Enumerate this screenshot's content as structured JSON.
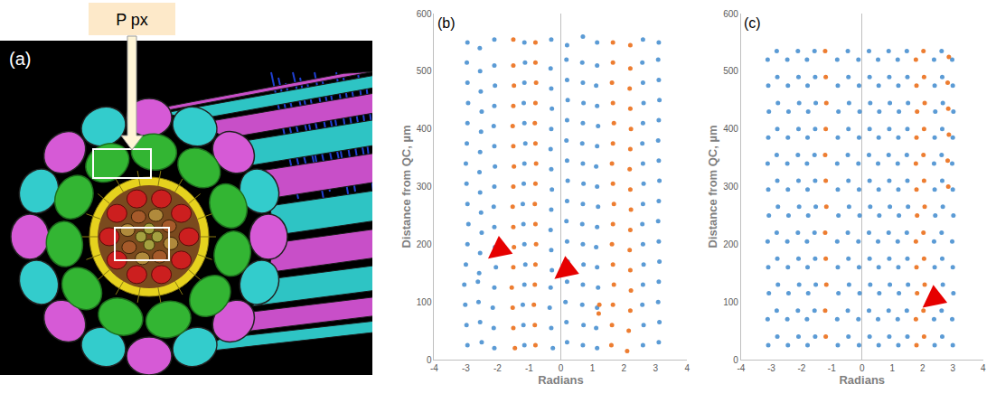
{
  "panel_a": {
    "label": "(a)",
    "callout": "P px"
  },
  "chart_data": [
    {
      "type": "scatter",
      "title": "(b)",
      "xlabel": "Radians",
      "ylabel": "Distance from QC, µm",
      "xlim": [
        -4,
        4
      ],
      "xticks": [
        -4,
        -3,
        -2,
        -1,
        0,
        1,
        2,
        3,
        4
      ],
      "ylim": [
        0,
        600
      ],
      "yticks": [
        0,
        100,
        200,
        300,
        400,
        500,
        600
      ],
      "grid": false,
      "marker": "circle",
      "series": [
        {
          "color": "#5b9bd5",
          "x": [
            -2.95,
            -2.98,
            -3.02,
            -3.05,
            -3.0,
            -2.95,
            -2.92,
            -2.95,
            -2.98,
            -3.0,
            -2.97,
            -2.95,
            -2.93,
            -2.95,
            -2.97,
            -2.95,
            -2.5,
            -2.55,
            -2.6,
            -2.62,
            -2.58,
            -2.55,
            -2.5,
            -2.52,
            -2.55,
            -2.57,
            -2.55,
            -2.52,
            -2.5,
            -2.53,
            -2.55,
            -2.56,
            -2.1,
            -2.12,
            -2.15,
            -2.1,
            -2.05,
            -2.08,
            -2.1,
            -2.12,
            -2.1,
            -2.08,
            -2.1,
            -2.12,
            -2.1,
            -2.08,
            -2.1,
            -2.1,
            -1.15,
            -1.18,
            -1.2,
            -1.15,
            -1.12,
            -1.15,
            -1.18,
            -1.2,
            -1.17,
            -1.15,
            -1.12,
            -1.15,
            -1.17,
            -1.15,
            -1.13,
            -1.15,
            -0.25,
            -0.3,
            -0.35,
            -0.32,
            -0.28,
            -0.3,
            -0.32,
            -0.3,
            -0.28,
            -0.3,
            -0.32,
            -0.3,
            -0.28,
            -0.3,
            -0.32,
            -0.3,
            0.2,
            0.18,
            0.15,
            0.2,
            0.22,
            0.2,
            0.18,
            0.2,
            0.22,
            0.2,
            0.18,
            0.2,
            0.22,
            0.2,
            0.18,
            0.2,
            0.7,
            0.72,
            0.68,
            0.7,
            0.72,
            0.7,
            0.68,
            0.7,
            0.72,
            0.7,
            0.68,
            0.7,
            0.72,
            0.7,
            0.68,
            0.7,
            1.15,
            1.12,
            1.15,
            1.18,
            1.15,
            1.12,
            1.15,
            1.18,
            1.15,
            1.12,
            1.15,
            1.18,
            1.15,
            1.12,
            1.15,
            1.15,
            2.6,
            2.62,
            2.58,
            2.6,
            2.62,
            2.6,
            2.58,
            2.6,
            2.62,
            2.6,
            2.58,
            2.6,
            2.62,
            2.6,
            2.58,
            2.6,
            3.1,
            3.12,
            3.08,
            3.1,
            3.12,
            3.1,
            3.08,
            3.1,
            3.12,
            3.1,
            3.08,
            3.1,
            3.12,
            3.1,
            3.08,
            3.1
          ],
          "y": [
            25,
            60,
            95,
            130,
            165,
            200,
            235,
            270,
            305,
            340,
            375,
            410,
            445,
            480,
            515,
            550,
            30,
            65,
            100,
            135,
            150,
            185,
            220,
            255,
            290,
            325,
            360,
            395,
            430,
            465,
            500,
            540,
            20,
            55,
            90,
            125,
            160,
            195,
            230,
            265,
            300,
            335,
            370,
            405,
            440,
            475,
            510,
            555,
            25,
            60,
            95,
            130,
            165,
            200,
            235,
            270,
            305,
            340,
            375,
            410,
            445,
            480,
            515,
            550,
            20,
            55,
            90,
            125,
            155,
            190,
            225,
            260,
            295,
            330,
            365,
            400,
            435,
            470,
            505,
            555,
            30,
            65,
            100,
            135,
            170,
            205,
            240,
            275,
            310,
            345,
            380,
            415,
            450,
            485,
            520,
            545,
            25,
            60,
            95,
            130,
            165,
            200,
            235,
            270,
            305,
            340,
            375,
            410,
            445,
            480,
            515,
            560,
            20,
            55,
            90,
            125,
            160,
            195,
            230,
            265,
            300,
            335,
            370,
            405,
            440,
            475,
            510,
            550,
            25,
            60,
            95,
            130,
            165,
            200,
            235,
            270,
            305,
            340,
            375,
            410,
            445,
            480,
            515,
            555,
            30,
            65,
            100,
            135,
            170,
            205,
            240,
            275,
            310,
            345,
            380,
            415,
            450,
            485,
            520,
            550
          ]
        },
        {
          "color": "#ed7d31",
          "x": [
            -1.45,
            -1.5,
            -1.52,
            -1.55,
            -1.5,
            -1.48,
            -1.5,
            -1.52,
            -1.5,
            -1.48,
            -1.5,
            -1.52,
            -1.5,
            -1.48,
            -1.5,
            -1.5,
            -0.8,
            -0.82,
            -0.85,
            -0.82,
            -0.8,
            -0.78,
            -0.8,
            -0.82,
            -0.8,
            -0.78,
            -0.8,
            -0.82,
            -0.8,
            -0.78,
            -0.8,
            -0.8,
            1.6,
            1.62,
            1.65,
            1.68,
            1.65,
            1.62,
            1.65,
            1.68,
            1.65,
            1.62,
            1.65,
            1.68,
            1.65,
            1.62,
            1.65,
            1.65,
            2.1,
            2.15,
            2.2,
            2.22,
            2.2,
            2.18,
            2.2,
            2.22,
            2.2,
            2.18,
            2.2,
            2.22,
            2.2,
            2.18,
            2.2,
            2.2,
            1.2,
            1.22
          ],
          "y": [
            20,
            55,
            90,
            125,
            160,
            195,
            230,
            265,
            300,
            335,
            370,
            405,
            440,
            475,
            510,
            555,
            25,
            60,
            95,
            130,
            165,
            200,
            235,
            270,
            305,
            340,
            375,
            410,
            445,
            480,
            515,
            550,
            25,
            60,
            95,
            130,
            165,
            200,
            235,
            270,
            305,
            340,
            375,
            410,
            445,
            480,
            515,
            550,
            15,
            50,
            85,
            120,
            155,
            190,
            225,
            260,
            295,
            330,
            365,
            400,
            435,
            470,
            505,
            545,
            80,
            95
          ]
        }
      ],
      "arrows": [
        {
          "x": -2.3,
          "y": 175
        },
        {
          "x": -0.2,
          "y": 140
        }
      ]
    },
    {
      "type": "scatter",
      "title": "(c)",
      "xlabel": "Radians",
      "ylabel": "Distance from QC, µm",
      "xlim": [
        -4,
        4
      ],
      "xticks": [
        -4,
        -3,
        -2,
        -1,
        0,
        1,
        2,
        3,
        4
      ],
      "ylim": [
        0,
        600
      ],
      "yticks": [
        0,
        100,
        200,
        300,
        400,
        500,
        600
      ],
      "grid": false,
      "marker": "circle",
      "series": [
        {
          "color": "#5b9bd5",
          "x": [
            -3.1,
            -3.12,
            -3.08,
            -3.1,
            -3.12,
            -3.08,
            -3.1,
            -3.12,
            -3.1,
            -3.08,
            -3.1,
            -3.12,
            -2.8,
            -2.82,
            -2.78,
            -2.8,
            -2.82,
            -2.78,
            -2.8,
            -2.82,
            -2.8,
            -2.78,
            -2.8,
            -2.82,
            -2.45,
            -2.47,
            -2.43,
            -2.45,
            -2.47,
            -2.43,
            -2.45,
            -2.47,
            -2.45,
            -2.43,
            -2.45,
            -2.47,
            -2.1,
            -2.12,
            -2.08,
            -2.1,
            -2.12,
            -2.08,
            -2.1,
            -2.12,
            -2.1,
            -2.08,
            -2.1,
            -2.12,
            -1.8,
            -1.82,
            -1.78,
            -1.8,
            -1.82,
            -1.78,
            -1.8,
            -1.82,
            -1.8,
            -1.78,
            -1.8,
            -1.82,
            -1.55,
            -1.57,
            -1.53,
            -1.55,
            -1.57,
            -1.53,
            -1.55,
            -1.57,
            -1.55,
            -1.53,
            -1.55,
            -1.57,
            -0.8,
            -0.82,
            -0.78,
            -0.8,
            -0.82,
            -0.78,
            -0.8,
            -0.82,
            -0.8,
            -0.78,
            -0.8,
            -0.82,
            -0.45,
            -0.47,
            -0.43,
            -0.45,
            -0.47,
            -0.43,
            -0.45,
            -0.47,
            -0.45,
            -0.43,
            -0.45,
            -0.47,
            -0.1,
            -0.12,
            -0.08,
            -0.1,
            -0.12,
            -0.08,
            -0.1,
            -0.12,
            -0.1,
            -0.08,
            -0.1,
            -0.12,
            0.25,
            0.23,
            0.27,
            0.25,
            0.23,
            0.27,
            0.25,
            0.23,
            0.25,
            0.27,
            0.25,
            0.23,
            0.55,
            0.53,
            0.57,
            0.55,
            0.53,
            0.57,
            0.55,
            0.53,
            0.55,
            0.57,
            0.55,
            0.53,
            0.9,
            0.88,
            0.92,
            0.9,
            0.88,
            0.92,
            0.9,
            0.88,
            0.9,
            0.92,
            0.9,
            0.88,
            1.2,
            1.18,
            1.22,
            1.2,
            1.18,
            1.22,
            1.2,
            1.18,
            1.2,
            1.22,
            1.2,
            1.18,
            1.5,
            1.48,
            1.52,
            1.5,
            1.48,
            1.52,
            1.5,
            1.48,
            1.5,
            1.52,
            1.5,
            1.48,
            2.4,
            2.38,
            2.42,
            2.4,
            2.38,
            2.42,
            2.4,
            2.38,
            2.4,
            2.42,
            2.4,
            2.38,
            2.65,
            2.63,
            2.67,
            2.65,
            2.63,
            2.67,
            2.65,
            2.63,
            2.65,
            2.67,
            2.65,
            2.63,
            3.0,
            2.98,
            3.02,
            3.0,
            2.98,
            3.02,
            3.0,
            2.98,
            3.0,
            3.02,
            3.0,
            2.98
          ],
          "y": [
            25,
            70,
            115,
            160,
            205,
            250,
            295,
            340,
            385,
            430,
            475,
            520,
            40,
            85,
            130,
            175,
            220,
            265,
            310,
            355,
            400,
            445,
            490,
            535,
            25,
            70,
            115,
            160,
            205,
            250,
            295,
            340,
            385,
            430,
            475,
            520,
            40,
            85,
            130,
            175,
            220,
            265,
            310,
            355,
            400,
            445,
            490,
            535,
            25,
            70,
            115,
            160,
            205,
            250,
            295,
            340,
            385,
            430,
            475,
            520,
            40,
            85,
            130,
            175,
            220,
            265,
            310,
            355,
            400,
            445,
            490,
            535,
            25,
            70,
            115,
            160,
            205,
            250,
            295,
            340,
            385,
            430,
            475,
            520,
            40,
            85,
            130,
            175,
            220,
            265,
            310,
            355,
            400,
            445,
            490,
            535,
            25,
            70,
            115,
            160,
            205,
            250,
            295,
            340,
            385,
            430,
            475,
            520,
            40,
            85,
            130,
            175,
            220,
            265,
            310,
            355,
            400,
            445,
            490,
            535,
            25,
            70,
            115,
            160,
            205,
            250,
            295,
            340,
            385,
            430,
            475,
            520,
            40,
            85,
            130,
            175,
            220,
            265,
            310,
            355,
            400,
            445,
            490,
            535,
            25,
            70,
            115,
            160,
            205,
            250,
            295,
            340,
            385,
            430,
            475,
            520,
            40,
            85,
            130,
            175,
            220,
            265,
            310,
            355,
            400,
            445,
            490,
            535,
            25,
            70,
            115,
            160,
            205,
            250,
            295,
            340,
            385,
            430,
            475,
            520,
            40,
            85,
            130,
            175,
            220,
            265,
            310,
            355,
            400,
            445,
            490,
            535,
            25,
            70,
            115,
            160,
            205,
            250,
            295,
            340,
            385,
            430,
            475,
            520
          ]
        },
        {
          "color": "#ed7d31",
          "x": [
            -1.2,
            -1.22,
            -1.18,
            -1.2,
            -1.22,
            -1.18,
            -1.2,
            -1.22,
            -1.2,
            -1.18,
            -1.2,
            -1.22,
            1.8,
            1.78,
            1.82,
            1.8,
            1.78,
            1.82,
            1.8,
            1.78,
            1.8,
            1.82,
            1.8,
            1.78,
            2.05,
            2.03,
            2.07,
            2.05,
            2.03,
            2.07,
            2.05,
            2.03,
            2.05,
            2.07,
            2.05,
            2.03,
            2.85,
            2.83,
            2.87,
            2.85,
            2.83,
            2.87
          ],
          "y": [
            40,
            85,
            130,
            175,
            220,
            265,
            310,
            355,
            400,
            445,
            490,
            535,
            25,
            70,
            115,
            160,
            205,
            250,
            295,
            340,
            385,
            430,
            475,
            520,
            40,
            85,
            130,
            175,
            220,
            265,
            310,
            355,
            400,
            445,
            490,
            535,
            300,
            345,
            390,
            435,
            480,
            525
          ]
        }
      ],
      "arrows": [
        {
          "x": 2.0,
          "y": 90
        }
      ]
    }
  ]
}
